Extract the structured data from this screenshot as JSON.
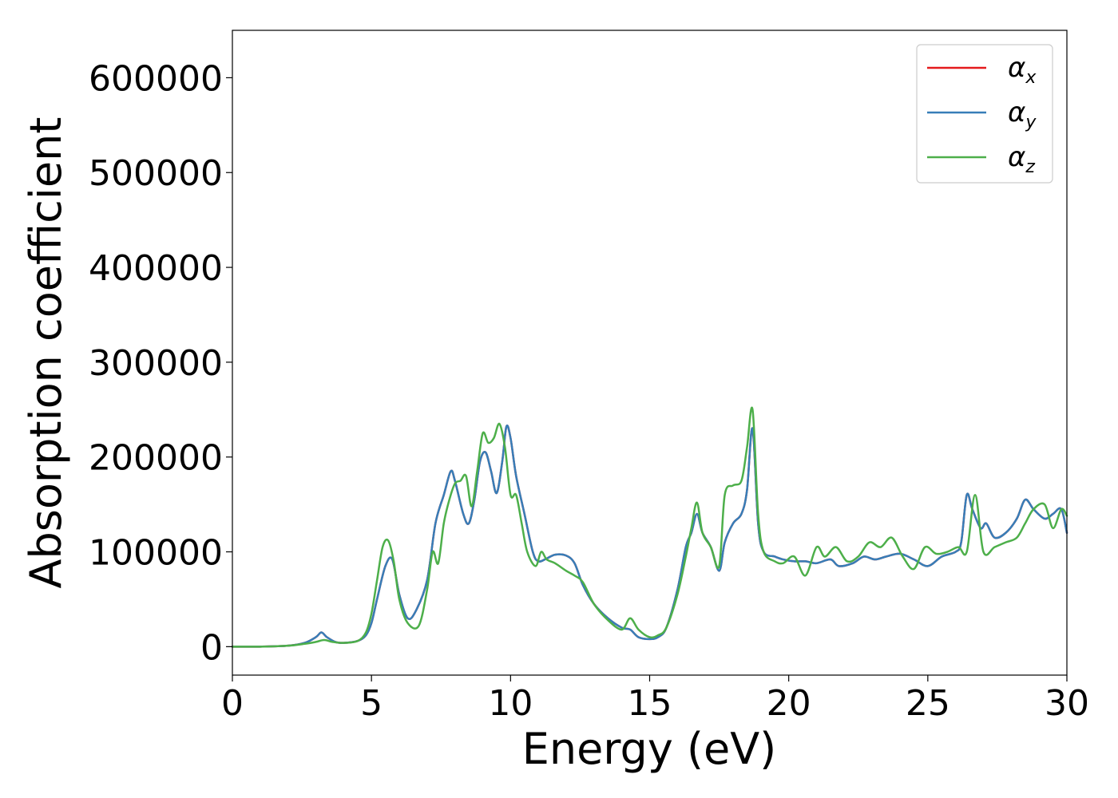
{
  "chart_data": {
    "type": "line",
    "title": "",
    "xlabel": "Energy (eV)",
    "ylabel": "Absorption coefficient",
    "xlim": [
      0,
      30
    ],
    "ylim": [
      -30000,
      650000
    ],
    "xticks": [
      0,
      5,
      10,
      15,
      20,
      25,
      30
    ],
    "yticks": [
      0,
      100000,
      200000,
      300000,
      400000,
      500000,
      600000
    ],
    "grid": false,
    "legend_position": "top-right",
    "series": [
      {
        "name": "α",
        "subscript": "x",
        "color": "#e41a1c",
        "x": [
          0,
          1,
          2,
          2.6,
          3,
          3.2,
          3.4,
          3.7,
          4,
          4.5,
          4.8,
          5,
          5.2,
          5.5,
          5.75,
          6,
          6.3,
          6.6,
          7,
          7.3,
          7.6,
          7.85,
          8,
          8.3,
          8.5,
          8.7,
          8.9,
          9.1,
          9.3,
          9.5,
          9.7,
          9.85,
          10,
          10.2,
          10.5,
          10.8,
          11,
          11.3,
          11.6,
          12,
          12.3,
          12.6,
          13,
          13.5,
          14,
          14.3,
          14.6,
          15,
          15.3,
          15.6,
          16,
          16.3,
          16.5,
          16.7,
          16.9,
          17.2,
          17.5,
          17.7,
          18,
          18.3,
          18.5,
          18.7,
          18.9,
          19.1,
          19.5,
          19.8,
          20.2,
          20.6,
          21,
          21.5,
          21.8,
          22.3,
          22.7,
          23.1,
          23.5,
          24,
          24.5,
          25,
          25.5,
          26,
          26.2,
          26.4,
          26.6,
          26.9,
          27.1,
          27.4,
          27.8,
          28.2,
          28.5,
          28.8,
          29.2,
          29.5,
          29.8,
          30
        ],
        "values": [
          0,
          0,
          1000,
          4000,
          10000,
          15000,
          10000,
          5000,
          4000,
          6000,
          12000,
          25000,
          50000,
          85000,
          92000,
          55000,
          30000,
          38000,
          70000,
          130000,
          160000,
          185000,
          175000,
          140000,
          130000,
          155000,
          195000,
          205000,
          185000,
          162000,
          195000,
          232000,
          220000,
          180000,
          140000,
          100000,
          90000,
          93000,
          97000,
          96000,
          88000,
          65000,
          45000,
          30000,
          20000,
          18000,
          10000,
          8000,
          10000,
          20000,
          60000,
          105000,
          120000,
          140000,
          120000,
          105000,
          80000,
          110000,
          130000,
          140000,
          165000,
          230000,
          130000,
          100000,
          95000,
          92000,
          90000,
          90000,
          88000,
          92000,
          85000,
          88000,
          95000,
          92000,
          95000,
          98000,
          92000,
          85000,
          95000,
          100000,
          110000,
          160000,
          145000,
          125000,
          130000,
          115000,
          120000,
          135000,
          155000,
          145000,
          135000,
          140000,
          145000,
          120000
        ]
      },
      {
        "name": "α",
        "subscript": "y",
        "color": "#377eb8",
        "x": [
          0,
          1,
          2,
          2.6,
          3,
          3.2,
          3.4,
          3.7,
          4,
          4.5,
          4.8,
          5,
          5.2,
          5.5,
          5.75,
          6,
          6.3,
          6.6,
          7,
          7.3,
          7.6,
          7.85,
          8,
          8.3,
          8.5,
          8.7,
          8.9,
          9.1,
          9.3,
          9.5,
          9.7,
          9.85,
          10,
          10.2,
          10.5,
          10.8,
          11,
          11.3,
          11.6,
          12,
          12.3,
          12.6,
          13,
          13.5,
          14,
          14.3,
          14.6,
          15,
          15.3,
          15.6,
          16,
          16.3,
          16.5,
          16.7,
          16.9,
          17.2,
          17.5,
          17.7,
          18,
          18.3,
          18.5,
          18.7,
          18.9,
          19.1,
          19.5,
          19.8,
          20.2,
          20.6,
          21,
          21.5,
          21.8,
          22.3,
          22.7,
          23.1,
          23.5,
          24,
          24.5,
          25,
          25.5,
          26,
          26.2,
          26.4,
          26.6,
          26.9,
          27.1,
          27.4,
          27.8,
          28.2,
          28.5,
          28.8,
          29.2,
          29.5,
          29.8,
          30
        ],
        "values": [
          0,
          0,
          1000,
          4000,
          10000,
          15000,
          10000,
          5000,
          4000,
          6000,
          12000,
          25000,
          50000,
          85000,
          92000,
          55000,
          30000,
          38000,
          70000,
          130000,
          160000,
          185000,
          175000,
          140000,
          130000,
          155000,
          195000,
          205000,
          185000,
          162000,
          195000,
          232000,
          220000,
          180000,
          140000,
          100000,
          90000,
          93000,
          97000,
          96000,
          88000,
          65000,
          45000,
          30000,
          20000,
          18000,
          10000,
          8000,
          10000,
          20000,
          60000,
          105000,
          120000,
          140000,
          120000,
          105000,
          80000,
          110000,
          130000,
          140000,
          165000,
          230000,
          130000,
          100000,
          95000,
          92000,
          90000,
          90000,
          88000,
          92000,
          85000,
          88000,
          95000,
          92000,
          95000,
          98000,
          92000,
          85000,
          95000,
          100000,
          110000,
          160000,
          145000,
          125000,
          130000,
          115000,
          120000,
          135000,
          155000,
          145000,
          135000,
          140000,
          145000,
          120000
        ]
      },
      {
        "name": "α",
        "subscript": "z",
        "color": "#4daf4a",
        "x": [
          0,
          1,
          2,
          2.6,
          3,
          3.3,
          3.6,
          4,
          4.5,
          4.8,
          5,
          5.2,
          5.4,
          5.6,
          5.8,
          6,
          6.3,
          6.7,
          7,
          7.2,
          7.4,
          7.6,
          7.8,
          8,
          8.2,
          8.4,
          8.6,
          8.8,
          9,
          9.2,
          9.4,
          9.6,
          9.8,
          10,
          10.2,
          10.4,
          10.6,
          10.9,
          11.1,
          11.3,
          11.6,
          12,
          12.3,
          12.6,
          13,
          13.5,
          14,
          14.3,
          14.6,
          15,
          15.3,
          15.6,
          16,
          16.3,
          16.5,
          16.7,
          16.9,
          17.2,
          17.5,
          17.7,
          18,
          18.3,
          18.5,
          18.7,
          18.9,
          19.1,
          19.5,
          19.8,
          20.2,
          20.6,
          21,
          21.3,
          21.7,
          22.1,
          22.5,
          22.9,
          23.3,
          23.7,
          24.1,
          24.5,
          24.9,
          25.3,
          25.7,
          26.1,
          26.4,
          26.7,
          27,
          27.4,
          27.8,
          28.2,
          28.5,
          28.8,
          29.2,
          29.5,
          29.8,
          30
        ],
        "values": [
          0,
          0,
          1000,
          3000,
          5000,
          7000,
          5000,
          4000,
          6000,
          15000,
          35000,
          70000,
          105000,
          112000,
          90000,
          50000,
          25000,
          22000,
          60000,
          100000,
          88000,
          130000,
          155000,
          172000,
          175000,
          180000,
          148000,
          185000,
          225000,
          215000,
          220000,
          235000,
          210000,
          160000,
          160000,
          130000,
          100000,
          85000,
          100000,
          92000,
          88000,
          80000,
          75000,
          68000,
          45000,
          28000,
          18000,
          30000,
          18000,
          10000,
          12000,
          20000,
          55000,
          95000,
          125000,
          152000,
          120000,
          105000,
          85000,
          160000,
          170000,
          175000,
          210000,
          250000,
          140000,
          100000,
          90000,
          88000,
          95000,
          75000,
          105000,
          95000,
          105000,
          90000,
          95000,
          110000,
          105000,
          115000,
          95000,
          82000,
          105000,
          98000,
          100000,
          105000,
          100000,
          160000,
          100000,
          105000,
          110000,
          115000,
          130000,
          145000,
          150000,
          125000,
          145000,
          138000
        ]
      }
    ]
  }
}
